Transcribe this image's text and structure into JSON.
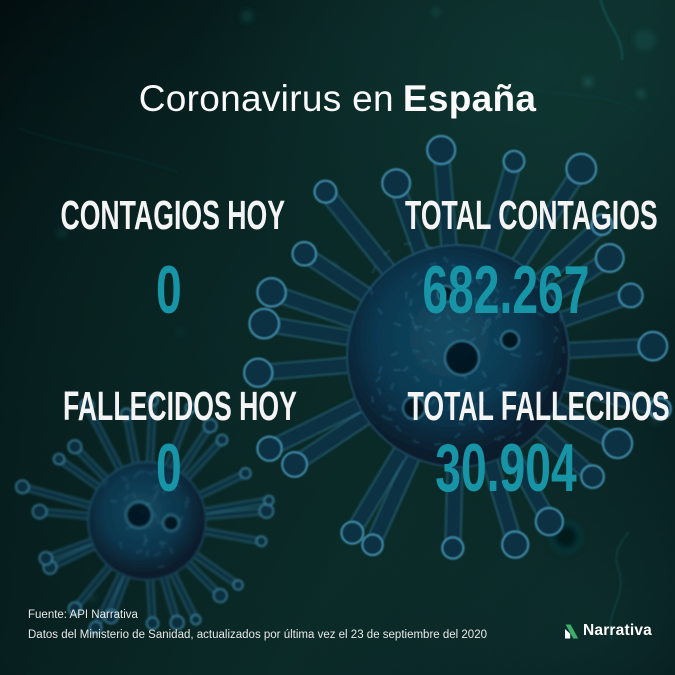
{
  "title": {
    "prefix": "Coronavirus en",
    "country": "España"
  },
  "stats": {
    "contagios_hoy": {
      "label": "CONTAGIOS HOY",
      "value": "0"
    },
    "total_contagios": {
      "label": "TOTAL CONTAGIOS",
      "value": "682.267"
    },
    "fallecidos_hoy": {
      "label": "FALLECIDOS HOY",
      "value": "0"
    },
    "total_fallecidos": {
      "label": "TOTAL FALLECIDOS",
      "value": "30.904"
    }
  },
  "footer": {
    "source": "Fuente: API Narrativa",
    "update": "Datos del Ministerio de Sanidad, actualizados por última vez el  23 de septiembre del 2020"
  },
  "logo": {
    "name": "Narrativa"
  },
  "colors": {
    "accent": "#1795a7",
    "logo_green": "#3fae6a",
    "virus_rim": "rgba(86,178,216,0.75)",
    "virus_halo": "rgba(57,140,180,0.33)",
    "virus_core": "#0b3045",
    "text_white": "#f4f4f4"
  }
}
